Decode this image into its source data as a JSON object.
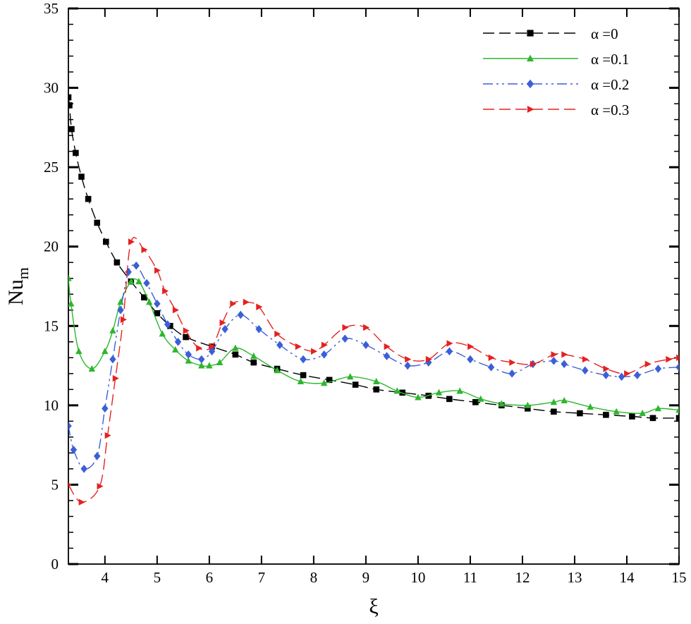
{
  "chart_data": {
    "type": "line",
    "xlabel": "ξ",
    "ylabel": "Nu",
    "ylabel_subscript": "m",
    "xlim": [
      3.3,
      15
    ],
    "ylim": [
      0,
      35
    ],
    "xticks": [
      4,
      5,
      6,
      7,
      8,
      9,
      10,
      11,
      12,
      13,
      14,
      15
    ],
    "yticks": [
      0,
      5,
      10,
      15,
      20,
      25,
      30,
      35
    ],
    "grid": false,
    "legend_position": "top-right",
    "series": [
      {
        "name": "α =0",
        "color": "#000000",
        "marker": "square",
        "dash": "16 7",
        "x": [
          3.3,
          3.32,
          3.36,
          3.44,
          3.55,
          3.68,
          3.85,
          4.02,
          4.23,
          4.5,
          4.75,
          5.0,
          5.25,
          5.55,
          6.05,
          6.5,
          6.85,
          7.3,
          7.8,
          8.3,
          8.8,
          9.2,
          9.7,
          10.2,
          10.6,
          11.1,
          11.6,
          12.1,
          12.6,
          13.1,
          13.6,
          14.1,
          14.5,
          15.0
        ],
        "y": [
          29.4,
          28.9,
          27.4,
          25.9,
          24.4,
          23.0,
          21.5,
          20.3,
          19.0,
          17.8,
          16.8,
          15.8,
          15.0,
          14.3,
          13.7,
          13.2,
          12.7,
          12.3,
          11.9,
          11.6,
          11.3,
          11.0,
          10.8,
          10.6,
          10.4,
          10.2,
          10.0,
          9.8,
          9.6,
          9.5,
          9.4,
          9.3,
          9.2,
          9.2
        ]
      },
      {
        "name": "α =0.1",
        "color": "#2db62d",
        "marker": "triangle-up",
        "dash": "",
        "x": [
          3.3,
          3.35,
          3.5,
          3.75,
          4.0,
          4.15,
          4.3,
          4.5,
          4.65,
          4.85,
          5.1,
          5.35,
          5.6,
          5.85,
          6.0,
          6.2,
          6.5,
          6.85,
          7.3,
          7.75,
          8.2,
          8.7,
          9.2,
          9.6,
          10.0,
          10.4,
          10.8,
          11.2,
          11.6,
          12.1,
          12.6,
          12.8,
          13.3,
          13.8,
          14.3,
          14.6,
          15.0
        ],
        "y": [
          18.0,
          16.4,
          13.4,
          12.3,
          13.4,
          14.7,
          16.5,
          17.8,
          17.8,
          16.5,
          14.5,
          13.5,
          12.8,
          12.5,
          12.5,
          12.7,
          13.6,
          13.1,
          12.2,
          11.5,
          11.4,
          11.8,
          11.5,
          10.9,
          10.5,
          10.8,
          10.9,
          10.4,
          10.1,
          10.0,
          10.2,
          10.3,
          9.9,
          9.6,
          9.5,
          9.8,
          9.7
        ]
      },
      {
        "name": "α =0.2",
        "color": "#3b5fd8",
        "marker": "diamond",
        "dash": "14 5 3 5 3 5",
        "x": [
          3.3,
          3.4,
          3.6,
          3.85,
          4.0,
          4.15,
          4.3,
          4.45,
          4.6,
          4.8,
          5.0,
          5.2,
          5.4,
          5.6,
          5.85,
          6.05,
          6.3,
          6.6,
          6.95,
          7.35,
          7.8,
          8.2,
          8.6,
          9.0,
          9.4,
          9.8,
          10.2,
          10.6,
          11.0,
          11.4,
          11.8,
          12.2,
          12.6,
          12.8,
          13.2,
          13.6,
          13.9,
          14.2,
          14.6,
          15.0
        ],
        "y": [
          8.7,
          7.2,
          6.0,
          6.8,
          9.8,
          12.9,
          16.0,
          18.4,
          18.8,
          17.7,
          16.4,
          15.1,
          14.0,
          13.2,
          12.9,
          13.4,
          14.8,
          15.7,
          14.8,
          13.8,
          12.9,
          13.2,
          14.2,
          13.8,
          13.1,
          12.5,
          12.7,
          13.4,
          12.9,
          12.4,
          12.0,
          12.6,
          12.8,
          12.6,
          12.2,
          11.9,
          11.8,
          11.9,
          12.3,
          12.4
        ]
      },
      {
        "name": "α =0.3",
        "color": "#e52121",
        "marker": "triangle-right",
        "dash": "16 7",
        "x": [
          3.3,
          3.55,
          3.9,
          4.05,
          4.2,
          4.35,
          4.5,
          4.75,
          5.0,
          5.15,
          5.35,
          5.55,
          5.8,
          6.05,
          6.25,
          6.45,
          6.7,
          6.95,
          7.3,
          7.7,
          8.0,
          8.2,
          8.6,
          9.0,
          9.4,
          9.8,
          10.2,
          10.6,
          11.0,
          11.4,
          11.8,
          12.2,
          12.6,
          12.8,
          13.2,
          13.6,
          14.0,
          14.4,
          14.8,
          15.0
        ],
        "y": [
          5.0,
          3.9,
          4.9,
          8.1,
          11.7,
          15.4,
          20.3,
          19.8,
          18.5,
          17.2,
          16.0,
          14.7,
          13.6,
          13.7,
          15.2,
          16.4,
          16.5,
          16.2,
          14.5,
          13.7,
          13.4,
          13.8,
          14.9,
          14.9,
          13.7,
          12.9,
          12.9,
          13.9,
          13.7,
          13.0,
          12.7,
          12.6,
          13.2,
          13.2,
          12.9,
          12.3,
          12.0,
          12.6,
          12.9,
          13.0
        ]
      }
    ]
  }
}
